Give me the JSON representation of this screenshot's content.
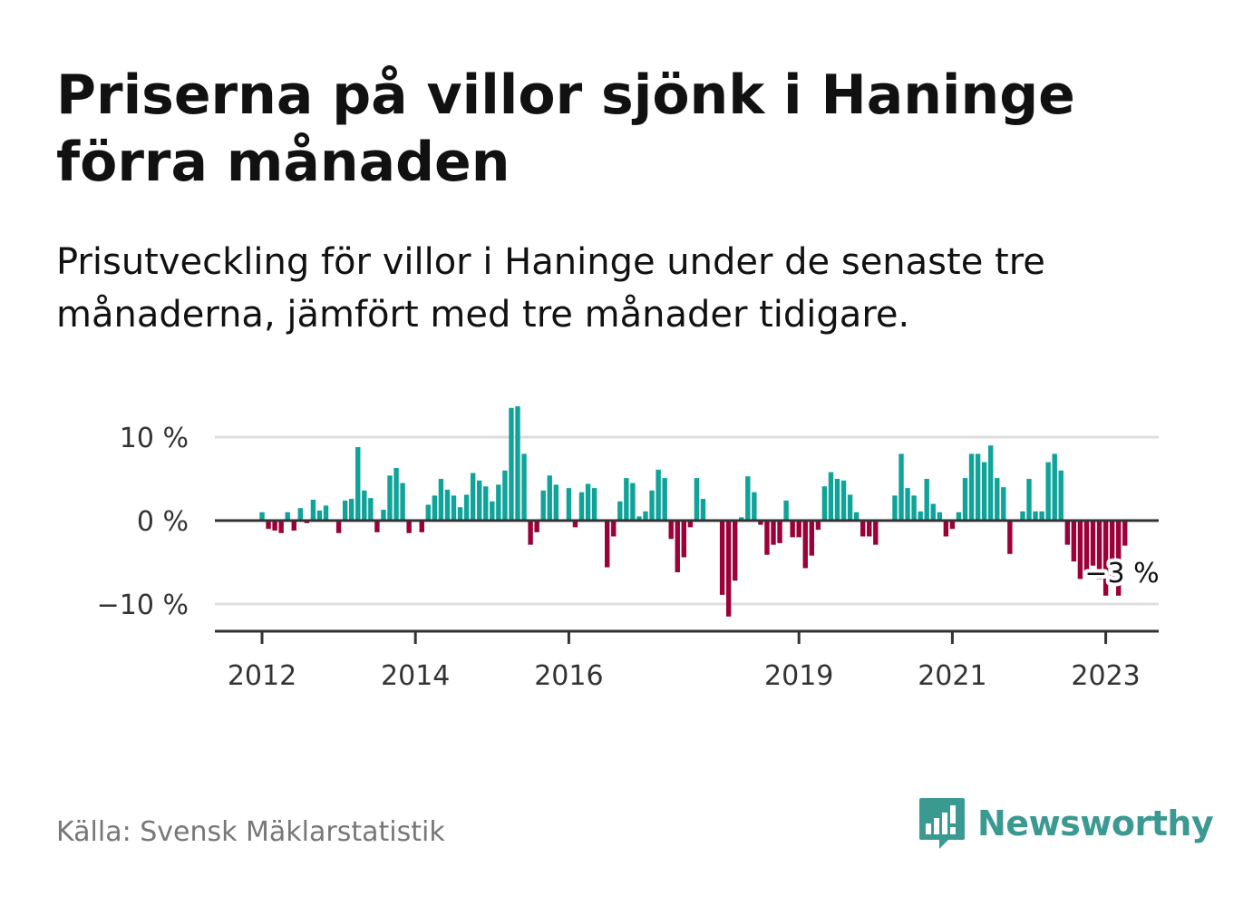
{
  "title": "Priserna på villor sjönk i Haninge förra månaden",
  "subtitle": "Prisutveckling för villor i Haninge under de senaste tre månaderna, jämfört med tre månader tidigare.",
  "source": "Källa: Svensk Mäklarstatistik",
  "brand": {
    "name": "Newsworthy",
    "icon": "newsworthy-logo-icon",
    "color": "#3a9a92"
  },
  "colors": {
    "positive": "#0fa39a",
    "negative": "#9b0038",
    "grid": "#dddddd",
    "axis": "#333333"
  },
  "chart_data": {
    "type": "bar",
    "x_start": "2012-01",
    "x_end": "2023-03",
    "x_ticks": [
      {
        "date": "2012-01",
        "label": "2012"
      },
      {
        "date": "2014-01",
        "label": "2014"
      },
      {
        "date": "2016-01",
        "label": "2016"
      },
      {
        "date": "2019-01",
        "label": "2019"
      },
      {
        "date": "2021-01",
        "label": "2021"
      },
      {
        "date": "2023-01",
        "label": "2023"
      }
    ],
    "y_ticks": [
      {
        "value": 10,
        "label": "10 %"
      },
      {
        "value": 0,
        "label": "0 %"
      },
      {
        "value": -10,
        "label": "−10 %"
      }
    ],
    "ylim": [
      -13,
      14.5
    ],
    "grid": true,
    "values": [
      1,
      -1,
      -1.2,
      -1.5,
      1,
      -1.2,
      1.5,
      -0.3,
      2.5,
      1.2,
      1.8,
      0,
      -1.5,
      2.4,
      2.6,
      8.8,
      3.6,
      2.7,
      -1.4,
      1.3,
      5.4,
      6.3,
      4.5,
      -1.5,
      0,
      -1.4,
      1.9,
      3,
      5,
      3.7,
      3,
      1.6,
      3.1,
      5.7,
      4.8,
      4.1,
      2.3,
      4.3,
      6,
      13.5,
      13.7,
      8,
      -2.9,
      -1.4,
      3.6,
      5.4,
      4.3,
      0,
      3.9,
      -0.8,
      3.4,
      4.4,
      3.9,
      0,
      -5.6,
      -1.9,
      2.3,
      5.1,
      4.5,
      0.5,
      1.1,
      3.6,
      6.1,
      5.1,
      -2.2,
      -6.2,
      -4.4,
      -0.8,
      5.1,
      2.6,
      0,
      0,
      -8.9,
      -11.5,
      -7.2,
      0.4,
      5.3,
      3.4,
      -0.5,
      -4.1,
      -2.9,
      -2.7,
      2.4,
      -2,
      -2,
      -5.7,
      -4.2,
      -1.1,
      4.1,
      5.8,
      5,
      4.8,
      3.1,
      1,
      -1.9,
      -1.9,
      -2.9,
      0,
      0,
      3,
      8,
      3.9,
      3,
      1.1,
      5,
      2,
      1,
      -1.9,
      -1,
      1,
      5.1,
      8,
      8,
      7,
      9,
      5.1,
      4,
      -4,
      0,
      1.1,
      5,
      1.1,
      1.1,
      7,
      8,
      6,
      -2.9,
      -4.9,
      -7,
      -6,
      -5.4,
      -7,
      -9,
      -7.5,
      -9,
      -3
    ],
    "annotation": {
      "date": "2023-03",
      "label": "−3 %"
    }
  }
}
